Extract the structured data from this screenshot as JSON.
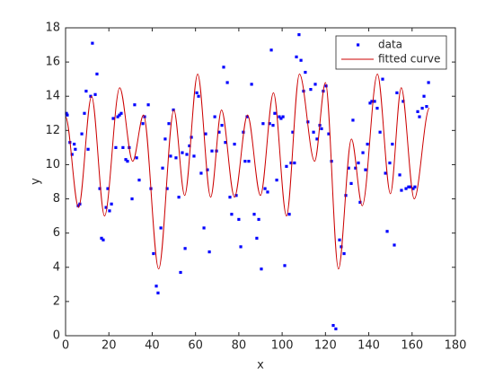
{
  "chart_data": {
    "type": "scatter_line",
    "xlabel": "x",
    "ylabel": "y",
    "xlim": [
      0,
      180
    ],
    "ylim": [
      0,
      18
    ],
    "xticks": [
      0,
      20,
      40,
      60,
      80,
      100,
      120,
      140,
      160,
      180
    ],
    "yticks": [
      0,
      2,
      4,
      6,
      8,
      10,
      12,
      14,
      16,
      18
    ],
    "grid": false,
    "legend": "northeast",
    "series": [
      {
        "name": "data",
        "color": "#0000ff",
        "kind": "points",
        "x": [
          0.4,
          0.8,
          2,
          3,
          4,
          4.5,
          5.8,
          6.6,
          7.5,
          8.7,
          9.5,
          10.4,
          11.6,
          12.4,
          13.7,
          14.5,
          15.8,
          16.6,
          17.4,
          18.7,
          19.5,
          20.3,
          21.2,
          22,
          23.2,
          24.1,
          24.9,
          25.7,
          26.5,
          27.8,
          28.6,
          29.4,
          30.7,
          31.9,
          32.8,
          34,
          35.7,
          36.5,
          38.2,
          39.4,
          40.6,
          41.9,
          42.7,
          44,
          44.8,
          46,
          46.9,
          47.7,
          48.5,
          49.8,
          51,
          52.3,
          53.1,
          53.9,
          55.2,
          56,
          57.2,
          58.1,
          59.3,
          60.6,
          61.4,
          62.6,
          63.9,
          64.7,
          65.5,
          66.4,
          67.6,
          68.9,
          69.7,
          70.9,
          72.2,
          73,
          73.8,
          74.7,
          75.9,
          76.7,
          78,
          78.8,
          80,
          80.9,
          82.1,
          82.9,
          83.8,
          84.6,
          85.9,
          87.1,
          88.3,
          89.2,
          90.4,
          91.2,
          92.1,
          93.3,
          94.2,
          95,
          95.8,
          96.6,
          97.5,
          98.7,
          99.5,
          100.4,
          101.2,
          102,
          103.3,
          104.1,
          104.9,
          105.7,
          106.6,
          107.8,
          108.7,
          109.9,
          110.7,
          111.9,
          113.2,
          114.5,
          115.3,
          116.1,
          117.4,
          118.2,
          119,
          120.3,
          121.5,
          122.8,
          123.6,
          124.8,
          126.5,
          127.3,
          128.6,
          129.4,
          130.7,
          131.9,
          132.7,
          133.9,
          135.2,
          136,
          137.3,
          138.5,
          139.4,
          140.6,
          141.4,
          142.7,
          143.9,
          145.2,
          146.4,
          147.7,
          148.5,
          149.7,
          150.9,
          151.8,
          153,
          154.3,
          155.1,
          155.9,
          157.2,
          158.4,
          159.3,
          160.5,
          161.3,
          162.6,
          163.4,
          164.7,
          165.5,
          166.7,
          167.6
        ],
        "values": [
          13.0,
          12.9,
          11.3,
          10.6,
          11.2,
          10.9,
          7.6,
          7.7,
          11.8,
          13.0,
          14.3,
          10.9,
          14.0,
          17.1,
          14.1,
          15.3,
          8.6,
          5.7,
          5.6,
          7.5,
          8.6,
          7.3,
          7.7,
          12.7,
          11.0,
          12.8,
          12.9,
          13.0,
          11.0,
          10.3,
          10.2,
          11.0,
          8.0,
          13.5,
          10.4,
          9.1,
          12.4,
          12.8,
          13.5,
          8.6,
          4.8,
          2.9,
          2.5,
          6.3,
          9.8,
          11.5,
          8.6,
          12.4,
          10.5,
          13.2,
          10.4,
          8.1,
          3.7,
          10.7,
          5.1,
          10.6,
          11.1,
          11.6,
          10.5,
          14.2,
          14.0,
          9.5,
          6.3,
          11.8,
          9.7,
          4.9,
          10.8,
          12.8,
          10.8,
          11.9,
          12.3,
          15.7,
          11.3,
          14.8,
          8.1,
          7.1,
          11.2,
          8.2,
          6.8,
          5.2,
          11.9,
          10.2,
          12.8,
          10.2,
          14.7,
          7.1,
          5.7,
          6.8,
          3.9,
          12.4,
          8.6,
          8.4,
          12.4,
          16.7,
          12.3,
          13.0,
          9.1,
          12.8,
          12.7,
          12.8,
          4.1,
          9.9,
          7.1,
          10.1,
          11.9,
          10.1,
          16.3,
          17.6,
          16.1,
          14.3,
          15.4,
          12.5,
          14.4,
          11.9,
          14.7,
          11.5,
          12.3,
          12.1,
          14.3,
          14.6,
          11.8,
          10.2,
          0.6,
          0.4,
          5.6,
          5.2,
          4.8,
          8.2,
          9.8,
          8.9,
          12.6,
          9.8,
          10.1,
          7.8,
          10.7,
          9.7,
          11.2,
          13.6,
          13.7,
          13.7,
          13.3,
          11.9,
          15.0,
          9.5,
          6.1,
          10.1,
          11.2,
          5.3,
          14.2,
          9.4,
          8.5,
          13.7,
          8.6,
          8.7,
          8.7,
          8.6,
          8.7,
          13.1,
          12.8,
          13.3,
          14.0,
          13.4,
          14.8
        ]
      },
      {
        "name": "fitted curve",
        "color": "#cc0000",
        "kind": "line",
        "x": [
          0,
          6,
          12,
          18,
          25,
          31,
          36,
          43,
          50,
          55,
          61,
          67,
          72,
          78,
          84,
          90,
          96,
          102,
          108,
          115,
          120,
          126,
          132,
          137,
          144,
          150,
          155,
          161,
          168
        ],
        "values": [
          12.8,
          7.5,
          14.0,
          7.0,
          14.5,
          10.2,
          12.9,
          3.9,
          13.2,
          8.2,
          15.3,
          8.1,
          13.2,
          8.1,
          12.9,
          8.2,
          14.2,
          7.0,
          15.3,
          10.2,
          14.8,
          3.9,
          11.5,
          7.6,
          15.3,
          8.3,
          14.5,
          8.0,
          13.3
        ]
      }
    ]
  }
}
